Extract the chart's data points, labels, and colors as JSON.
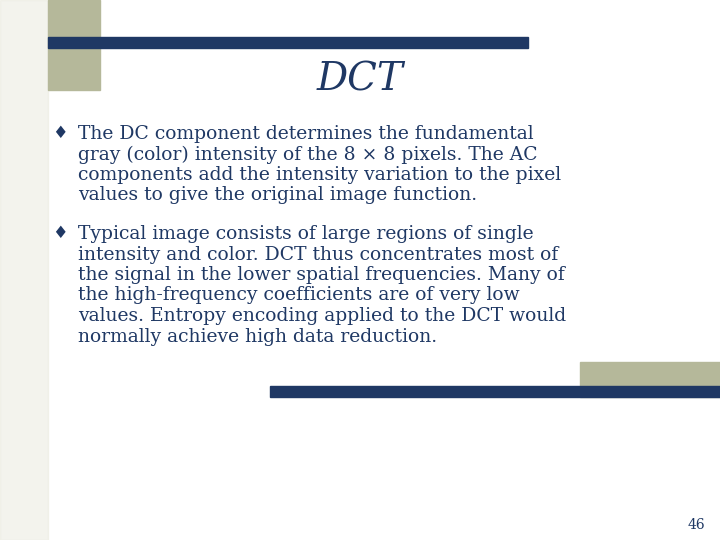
{
  "title": "DCT",
  "title_color": "#1F3864",
  "background_color": "#FFFFFF",
  "accent_color_dark": "#1F3864",
  "accent_color_light": "#B5B89A",
  "bullet1_lines": [
    "The DC component determines the fundamental",
    "gray (color) intensity of the 8 × 8 pixels. The AC",
    "components add the intensity variation to the pixel",
    "values to give the original image function."
  ],
  "bullet2_lines": [
    "Typical image consists of large regions of single",
    "intensity and color. DCT thus concentrates most of",
    "the signal in the lower spatial frequencies. Many of",
    "the high-frequency coefficients are of very low",
    "values. Entropy encoding applied to the DCT would",
    "normally achieve high data reduction."
  ],
  "slide_number": "46",
  "text_color": "#1F3864",
  "font_size_title": 28,
  "font_size_body": 13.5,
  "font_size_slide_num": 10,
  "stripe_bg_color": "#E8E8DC"
}
